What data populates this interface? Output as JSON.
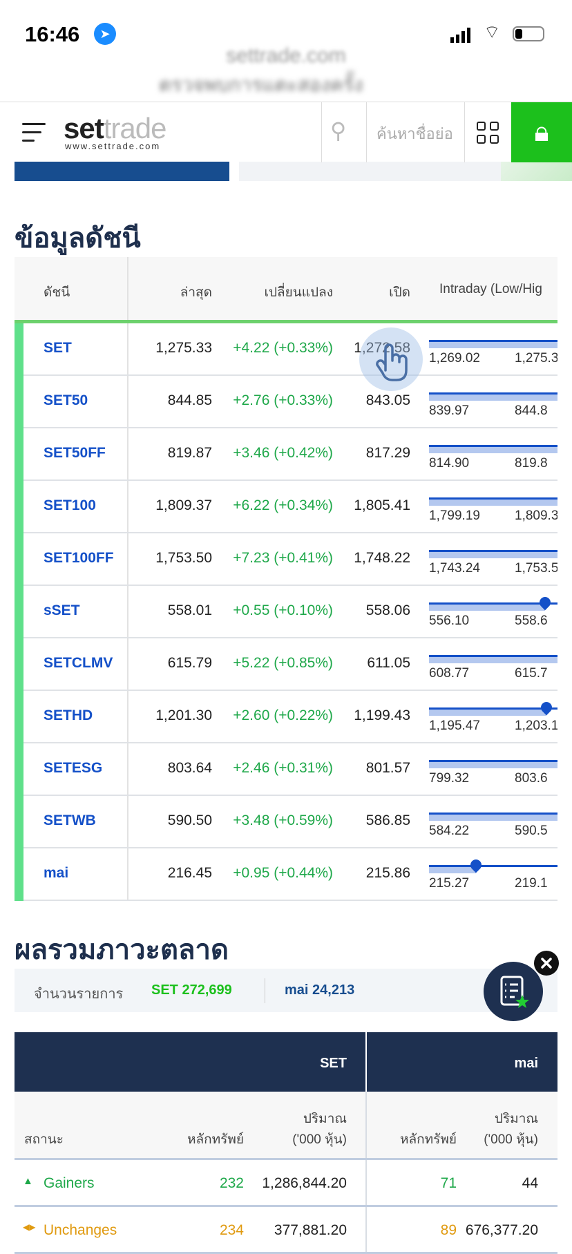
{
  "status_bar": {
    "time": "16:46",
    "icons": [
      "location-arrow-icon",
      "cellular-signal-icon",
      "wifi-icon",
      "battery-icon"
    ]
  },
  "blurred_banner": {
    "site": "settrade.com",
    "text": "ตรวจพบการแตะสองครั้ง"
  },
  "header": {
    "logo_dark": "set",
    "logo_light": "trade",
    "logo_sub": "www.settrade.com",
    "search_placeholder": "ค้นหาชื่อย่อ",
    "icons": [
      "menu-icon",
      "search-icon",
      "grid-icon",
      "lock-icon"
    ]
  },
  "index_section": {
    "title": "ข้อมูลดัชนี",
    "columns": [
      "ดัชนี",
      "ล่าสุด",
      "เปลี่ยนแปลง",
      "เปิด",
      "Intraday (Low/Hig"
    ],
    "rows": [
      {
        "name": "SET",
        "last": "1,275.33",
        "change": "+4.22 (+0.33%)",
        "open": "1,272.58",
        "low": "1,269.02",
        "high": "1,275.3"
      },
      {
        "name": "SET50",
        "last": "844.85",
        "change": "+2.76 (+0.33%)",
        "open": "843.05",
        "low": "839.97",
        "high": "844.8"
      },
      {
        "name": "SET50FF",
        "last": "819.87",
        "change": "+3.46 (+0.42%)",
        "open": "817.29",
        "low": "814.90",
        "high": "819.8"
      },
      {
        "name": "SET100",
        "last": "1,809.37",
        "change": "+6.22 (+0.34%)",
        "open": "1,805.41",
        "low": "1,799.19",
        "high": "1,809.3"
      },
      {
        "name": "SET100FF",
        "last": "1,753.50",
        "change": "+7.23 (+0.41%)",
        "open": "1,748.22",
        "low": "1,743.24",
        "high": "1,753.5"
      },
      {
        "name": "sSET",
        "last": "558.01",
        "change": "+0.55 (+0.10%)",
        "open": "558.06",
        "low": "556.10",
        "high": "558.6",
        "marker": 0.84
      },
      {
        "name": "SETCLMV",
        "last": "615.79",
        "change": "+5.22 (+0.85%)",
        "open": "611.05",
        "low": "608.77",
        "high": "615.7"
      },
      {
        "name": "SETHD",
        "last": "1,201.30",
        "change": "+2.60 (+0.22%)",
        "open": "1,199.43",
        "low": "1,195.47",
        "high": "1,203.1",
        "marker": 0.85
      },
      {
        "name": "SETESG",
        "last": "803.64",
        "change": "+2.46 (+0.31%)",
        "open": "801.57",
        "low": "799.32",
        "high": "803.6"
      },
      {
        "name": "SETWB",
        "last": "590.50",
        "change": "+3.48 (+0.59%)",
        "open": "586.85",
        "low": "584.22",
        "high": "590.5"
      },
      {
        "name": "mai",
        "last": "216.45",
        "change": "+0.95 (+0.44%)",
        "open": "215.86",
        "low": "215.27",
        "high": "219.1",
        "marker": 0.34
      }
    ]
  },
  "market_section": {
    "title": "ผลรวมภาวะตลาด",
    "summary": {
      "label": "จำนวนรายการ",
      "set": "SET 272,699",
      "mai": "mai 24,213"
    },
    "group_headers": [
      "SET",
      "mai"
    ],
    "sub_headers": {
      "status": "สถานะ",
      "securities": "หลักทรัพย์",
      "volume_1": "ปริมาณ",
      "volume_2": "('000 หุ้น)"
    },
    "rows": [
      {
        "status": "Gainers",
        "icon": "triangle-up-icon",
        "color": "#1fa84a",
        "set_count": "232",
        "set_volume": "1,286,844.20",
        "mai_count": "71",
        "mai_volume": "44"
      },
      {
        "status": "Unchanges",
        "icon": "left-right-arrows-icon",
        "color": "#e09a10",
        "set_count": "234",
        "set_volume": "377,881.20",
        "mai_count": "89",
        "mai_volume": "676,377.20"
      }
    ]
  },
  "colors": {
    "accent_green": "#1cc01c",
    "navy": "#1e3050",
    "link_blue": "#1450c8",
    "positive": "#1fa84a"
  }
}
